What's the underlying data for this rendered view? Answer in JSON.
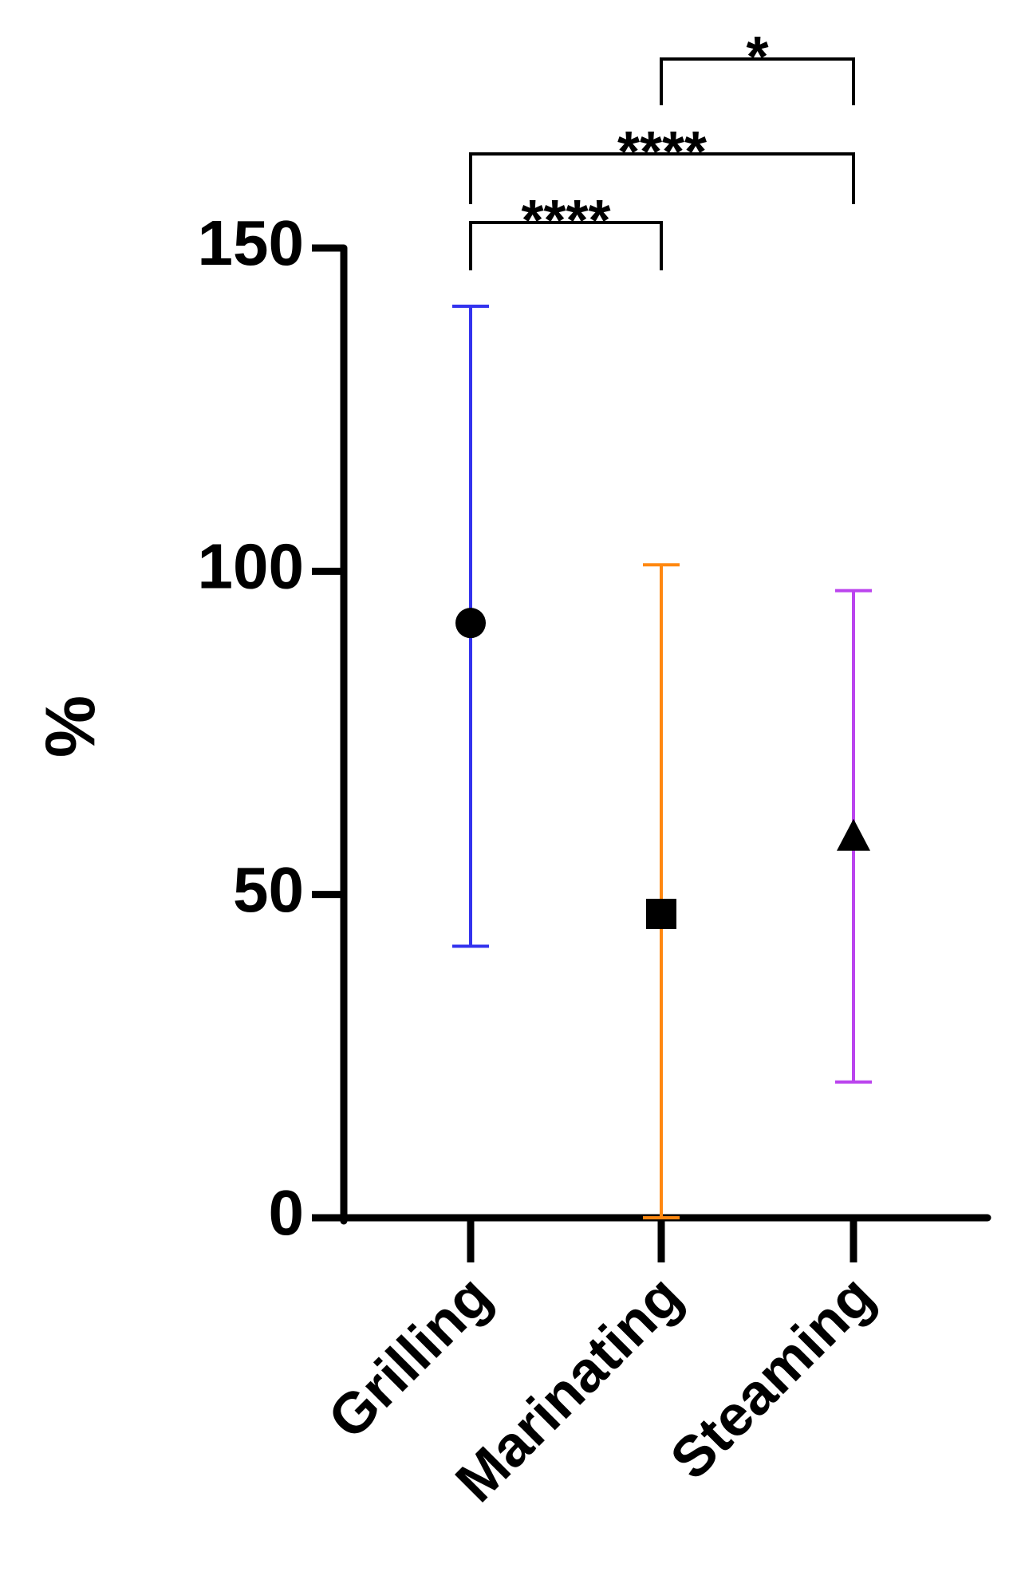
{
  "chart_data": {
    "type": "range-dot",
    "y_label": "%",
    "categories": [
      "Grilling",
      "Marinating",
      "Steaming"
    ],
    "values": [
      92,
      47,
      59
    ],
    "lower": [
      42,
      0,
      21
    ],
    "upper": [
      141,
      101,
      97
    ],
    "colors": [
      "#3333ee",
      "#ff8811",
      "#bb44ee"
    ],
    "markers": [
      "circle",
      "square",
      "triangle"
    ],
    "marker_color": "#000000",
    "ylim": [
      0,
      150
    ],
    "yticks": [
      0,
      50,
      100,
      150
    ],
    "grid": false,
    "significance": [
      {
        "from": "Grilling",
        "to": "Marinating",
        "label": "****"
      },
      {
        "from": "Grilling",
        "to": "Steaming",
        "label": "****"
      },
      {
        "from": "Marinating",
        "to": "Steaming",
        "label": "*"
      }
    ]
  }
}
